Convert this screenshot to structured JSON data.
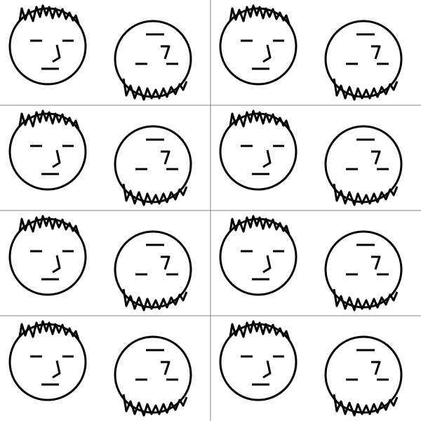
{
  "canvas": {
    "background": "#ffffff",
    "grid_line_color": "#808080",
    "ink_color": "#000000",
    "rows": 4,
    "columns": 2
  },
  "tile": {
    "faces": [
      {
        "kind": "upright-face",
        "hair": "spiky-hair-top"
      },
      {
        "kind": "upside-down-face",
        "hair": "spiky-hair-bottom"
      }
    ]
  }
}
